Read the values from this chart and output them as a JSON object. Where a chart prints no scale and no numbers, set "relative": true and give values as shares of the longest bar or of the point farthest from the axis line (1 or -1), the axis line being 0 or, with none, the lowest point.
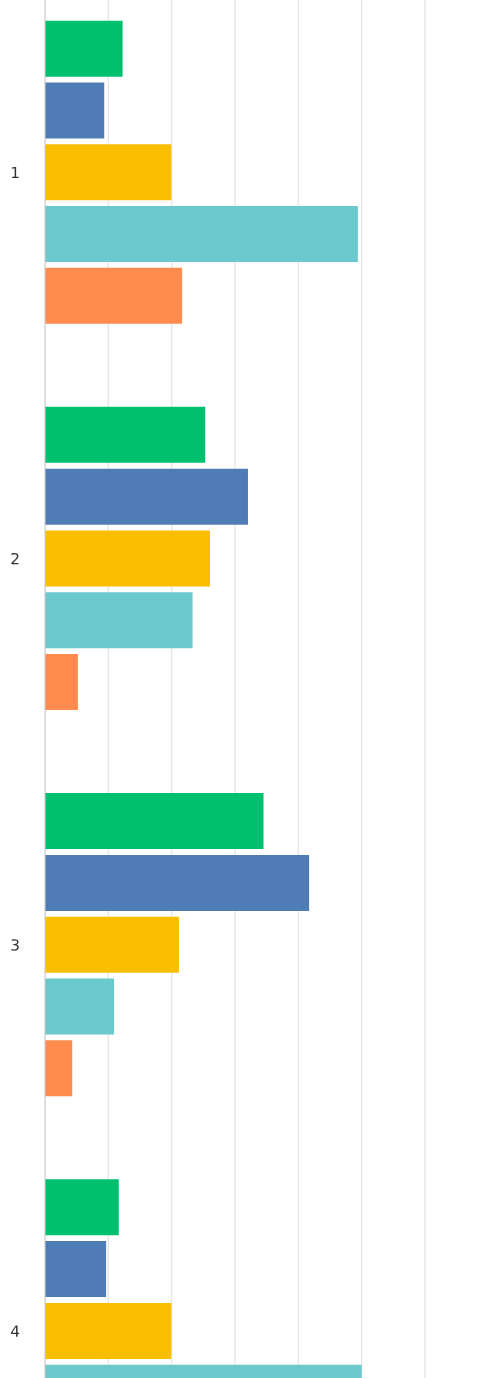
{
  "chart_data": {
    "type": "bar",
    "orientation": "horizontal",
    "relative": true,
    "grid": "x",
    "legend": false,
    "categories": [
      "1",
      "2",
      "3",
      "4"
    ],
    "series": [
      {
        "color": "#00bf6f",
        "values": [
          0.245,
          0.506,
          0.69,
          0.233
        ]
      },
      {
        "color": "#507cb6",
        "values": [
          0.187,
          0.641,
          0.834,
          0.193
        ]
      },
      {
        "color": "#f9be00",
        "values": [
          0.399,
          0.521,
          0.423,
          0.399
        ]
      },
      {
        "color": "#6bc8cd",
        "values": [
          0.988,
          0.466,
          0.218,
          1.0
        ]
      },
      {
        "color": "#ff8b4f",
        "values": [
          0.433,
          0.104,
          0.086,
          null
        ]
      }
    ]
  }
}
